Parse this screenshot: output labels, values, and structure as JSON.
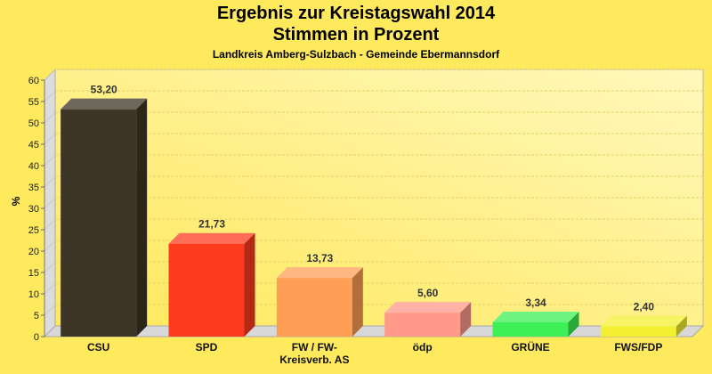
{
  "chart_data": {
    "type": "bar",
    "title": "Ergebnis zur Kreistagswahl 2014",
    "subtitle": "Stimmen in Prozent",
    "caption": "Landkreis Amberg-Sulzbach - Gemeinde Ebermannsdorf",
    "xlabel": "",
    "ylabel": "%",
    "ylim": [
      0,
      60
    ],
    "yticks": [
      "0",
      "5",
      "10",
      "15",
      "20",
      "25",
      "30",
      "35",
      "40",
      "45",
      "50",
      "55",
      "60"
    ],
    "grid": true,
    "categories": [
      [
        "CSU"
      ],
      [
        "SPD"
      ],
      [
        "FW / FW-",
        "Kreisverb. AS"
      ],
      [
        "ödp"
      ],
      [
        "GRÜNE"
      ],
      [
        "FWS/FDP"
      ]
    ],
    "values": [
      53.2,
      21.73,
      13.73,
      5.6,
      3.34,
      2.4
    ],
    "value_labels": [
      "53,20",
      "21,73",
      "13,73",
      "5,60",
      "3,34",
      "2,40"
    ],
    "colors": [
      "#3d3525",
      "#ff3b1f",
      "#ff9e55",
      "#ff9a8a",
      "#3cf055",
      "#f3f032"
    ]
  }
}
